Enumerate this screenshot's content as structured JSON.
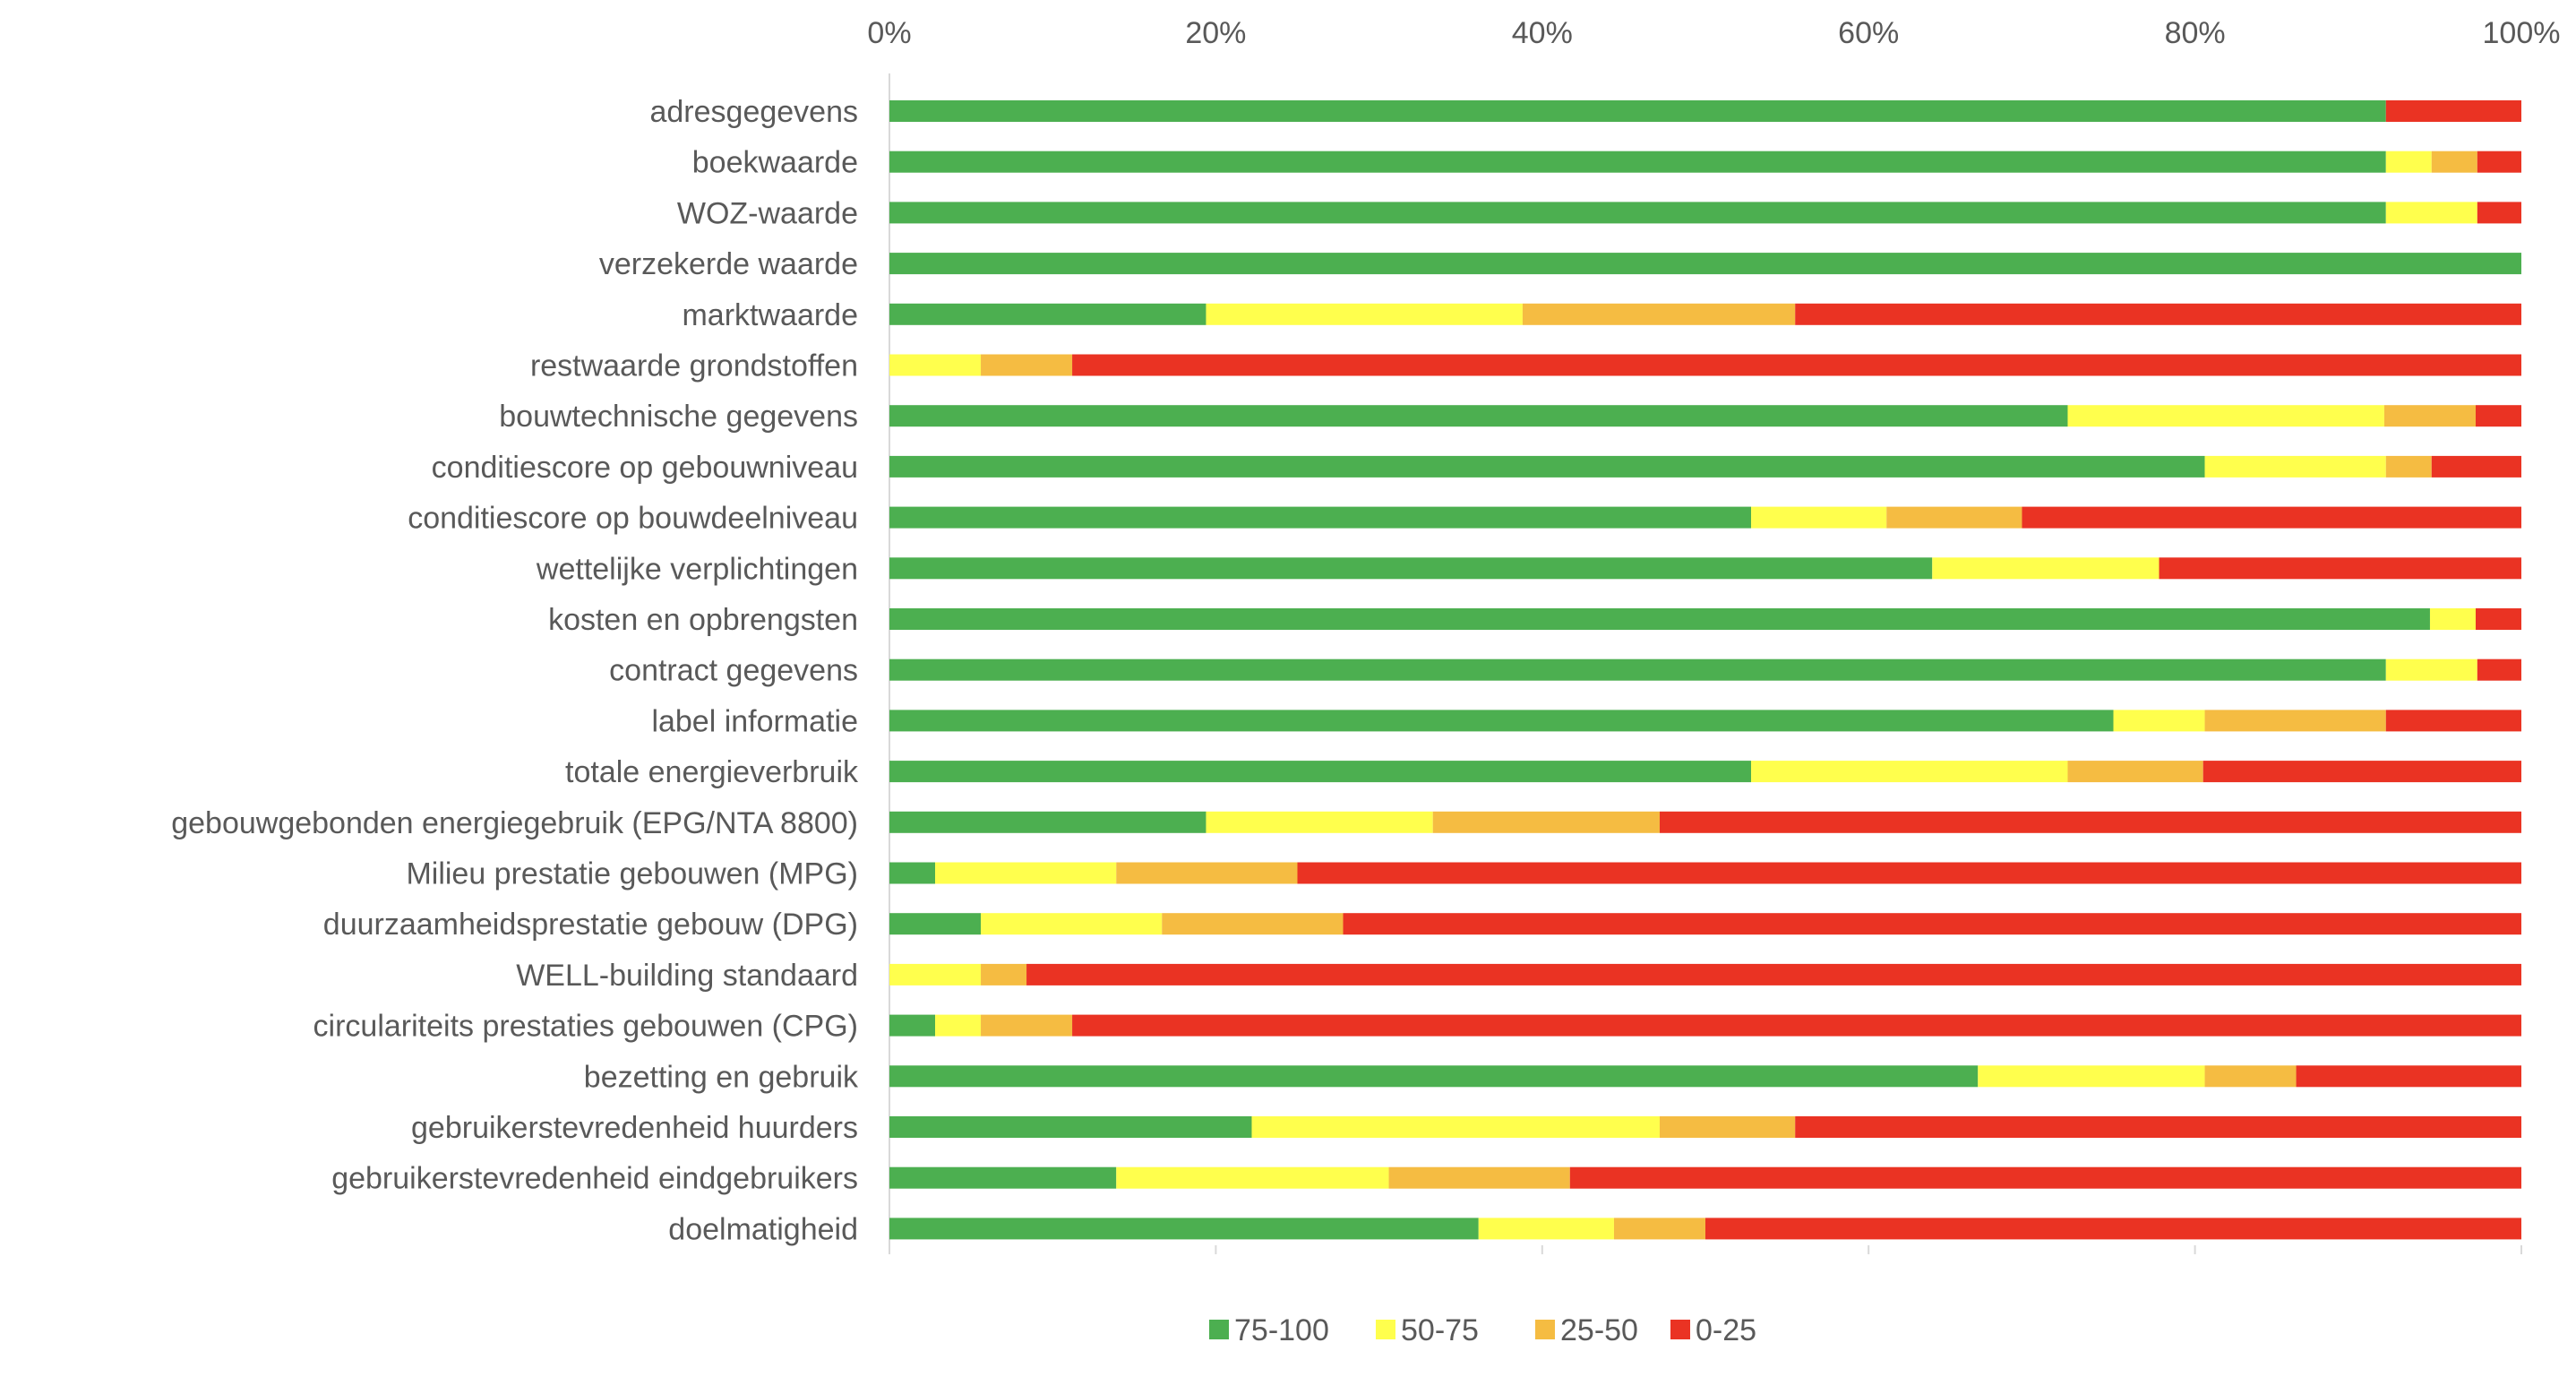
{
  "chart_data": {
    "type": "bar",
    "orientation": "horizontal",
    "stacked": "percent",
    "title": "",
    "xlabel": "",
    "ylabel": "",
    "xlim": [
      0,
      100
    ],
    "x_ticks": [
      "0%",
      "20%",
      "40%",
      "60%",
      "80%",
      "100%"
    ],
    "x_axis_position": "top",
    "grid": false,
    "legend_position": "bottom",
    "categories": [
      "adresgegevens",
      "boekwaarde",
      "WOZ-waarde",
      "verzekerde waarde",
      "marktwaarde",
      "restwaarde grondstoffen",
      "bouwtechnische gegevens",
      "conditiescore op gebouwniveau",
      "conditiescore op bouwdeelniveau",
      "wettelijke verplichtingen",
      "kosten en opbrengsten",
      "contract gegevens",
      "label informatie",
      "totale energieverbruik",
      "gebouwgebonden energiegebruik (EPG/NTA 8800)",
      "Milieu prestatie gebouwen (MPG)",
      "duurzaamheidsprestatie gebouw (DPG)",
      "WELL-building standaard",
      "circulariteits prestaties gebouwen (CPG)",
      "bezetting en gebruik",
      "gebruikerstevredenheid huurders",
      "gebruikerstevredenheid eindgebruikers",
      "doelmatigheid"
    ],
    "series": [
      {
        "name": "75-100",
        "color": "#4CAF50",
        "values": [
          91.7,
          91.7,
          91.7,
          100,
          19.4,
          0,
          72.2,
          80.6,
          52.8,
          63.9,
          94.4,
          91.7,
          75.0,
          52.8,
          19.4,
          2.8,
          5.6,
          0,
          2.8,
          66.7,
          22.2,
          13.9,
          36.1
        ]
      },
      {
        "name": "50-75",
        "color": "#FFFF4D",
        "values": [
          0,
          2.8,
          5.6,
          0,
          19.4,
          5.6,
          19.4,
          11.1,
          8.3,
          13.9,
          2.8,
          5.6,
          5.6,
          19.4,
          13.9,
          11.1,
          11.1,
          5.6,
          2.8,
          13.9,
          25.0,
          16.7,
          8.3
        ]
      },
      {
        "name": "25-50",
        "color": "#F5BC42",
        "values": [
          0,
          2.8,
          0,
          0,
          16.7,
          5.6,
          5.6,
          2.8,
          8.3,
          0,
          0,
          0,
          11.1,
          8.3,
          13.9,
          11.1,
          11.1,
          2.8,
          5.6,
          5.6,
          8.3,
          11.1,
          5.6
        ]
      },
      {
        "name": "0-25",
        "color": "#EA3323",
        "values": [
          8.3,
          2.7,
          2.7,
          0,
          44.5,
          88.8,
          2.8,
          5.5,
          30.6,
          22.2,
          2.8,
          2.7,
          8.3,
          19.5,
          52.8,
          75.0,
          72.2,
          91.6,
          88.8,
          13.8,
          44.5,
          58.3,
          50.0
        ]
      }
    ]
  }
}
